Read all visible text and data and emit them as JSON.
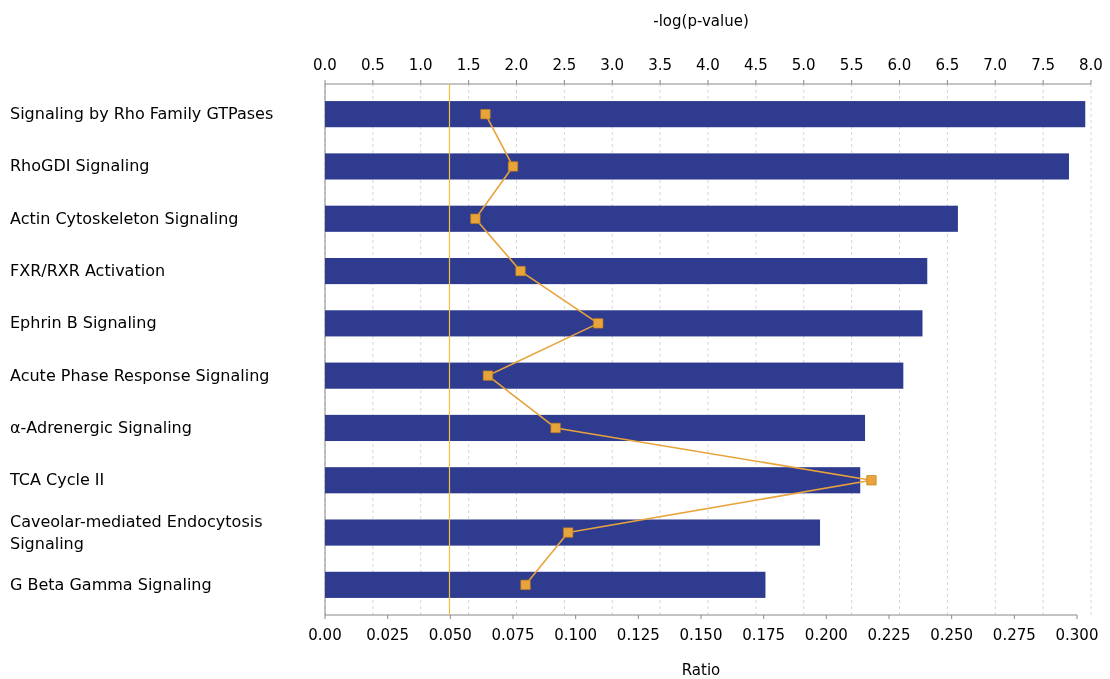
{
  "chart_data": {
    "type": "bar",
    "orientation": "horizontal",
    "xlabel": "Ratio",
    "x2label": "-log(p-value)",
    "categories": [
      "Signaling by Rho Family GTPases",
      "RhoGDI Signaling",
      "Actin Cytoskeleton Signaling",
      "FXR/RXR Activation",
      "Ephrin B Signaling",
      "Acute Phase Response Signaling",
      "α-Adrenergic Signaling",
      "TCA Cycle II",
      "Caveolar-mediated Endocytosis Signaling",
      "G Beta Gamma Signaling"
    ],
    "series": [
      {
        "axis": "x2",
        "color": "#2e3b8f",
        "values": [
          7.94,
          7.77,
          6.61,
          6.29,
          6.24,
          6.04,
          5.64,
          5.59,
          5.17,
          4.6
        ]
      },
      {
        "type": "line",
        "color": "#e8a33a",
        "marker": "square",
        "values": [
          0.064,
          0.075,
          0.06,
          0.078,
          0.109,
          0.065,
          0.092,
          0.218,
          0.097,
          0.08
        ]
      }
    ],
    "xlim": [
      0,
      0.3
    ],
    "xticks": [
      {
        "value": 0,
        "label": "0.00"
      },
      0.025,
      {
        "value": 0.05,
        "label": "0.050"
      },
      0.075,
      {
        "value": 0.1,
        "label": "0.100"
      },
      0.125,
      {
        "value": 0.15,
        "label": "0.150"
      },
      0.175,
      {
        "value": 0.2,
        "label": "0.200"
      },
      0.225,
      {
        "value": 0.25,
        "label": "0.250"
      },
      0.275,
      {
        "value": 0.3,
        "label": "0.300"
      }
    ],
    "x2lim": [
      0,
      8
    ],
    "x2ticks": [
      {
        "value": 0,
        "label": "0.0"
      },
      0.5,
      {
        "value": 1,
        "label": "1.0"
      },
      1.5,
      {
        "value": 2,
        "label": "2.0"
      },
      2.5,
      {
        "value": 3,
        "label": "3.0"
      },
      3.5,
      {
        "value": 4,
        "label": "4.0"
      },
      4.5,
      {
        "value": 5,
        "label": "5.0"
      },
      5.5,
      {
        "value": 6,
        "label": "6.0"
      },
      6.5,
      {
        "value": 7,
        "label": "7.0"
      },
      7.5,
      {
        "value": 8,
        "label": "8.0"
      }
    ],
    "ref_lines": [
      {
        "axis": "x2",
        "value": 1.3,
        "color": "#f0c040"
      }
    ],
    "grid": true
  }
}
